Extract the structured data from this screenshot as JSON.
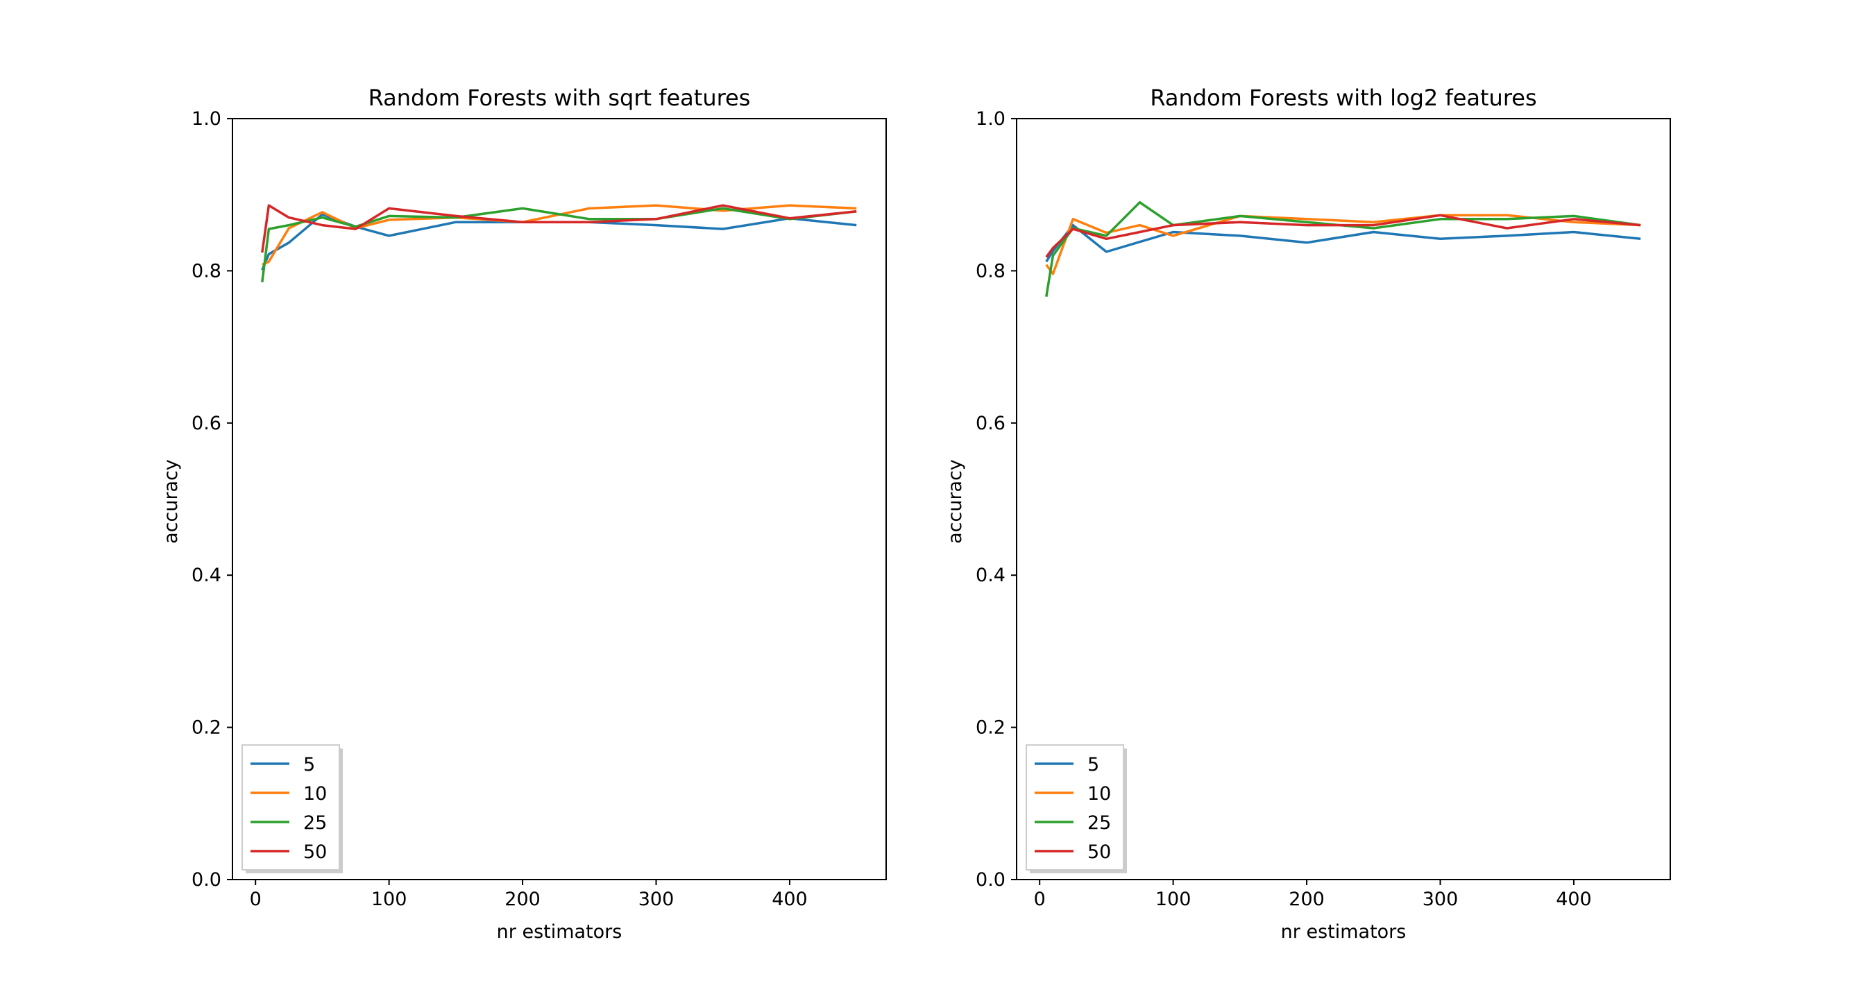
{
  "colors": {
    "series": [
      "#1f77b4",
      "#ff7f0e",
      "#2ca02c",
      "#d62728"
    ],
    "axis": "#000000",
    "background": "#ffffff"
  },
  "chart_data": [
    {
      "type": "line",
      "title": "Random Forests with sqrt features",
      "xlabel": "nr estimators",
      "ylabel": "accuracy",
      "xlim": [
        -17.25,
        472.25
      ],
      "ylim": [
        0.0,
        1.0
      ],
      "xticks": [
        0,
        100,
        200,
        300,
        400
      ],
      "xtick_labels": [
        "0",
        "100",
        "200",
        "300",
        "400"
      ],
      "yticks": [
        0.0,
        0.2,
        0.4,
        0.6,
        0.8,
        1.0
      ],
      "ytick_labels": [
        "0.0",
        "0.2",
        "0.4",
        "0.6",
        "0.8",
        "1.0"
      ],
      "grid": false,
      "legend_position": "lower-left",
      "x": [
        5,
        10,
        25,
        50,
        75,
        100,
        150,
        200,
        250,
        300,
        350,
        400,
        450
      ],
      "series": [
        {
          "name": "5",
          "values": [
            0.801,
            0.822,
            0.837,
            0.874,
            0.858,
            0.846,
            0.864,
            0.864,
            0.864,
            0.86,
            0.855,
            0.869,
            0.86
          ]
        },
        {
          "name": "10",
          "values": [
            0.808,
            0.812,
            0.856,
            0.877,
            0.856,
            0.867,
            0.87,
            0.864,
            0.882,
            0.886,
            0.879,
            0.886,
            0.882
          ]
        },
        {
          "name": "25",
          "values": [
            0.785,
            0.855,
            0.86,
            0.87,
            0.858,
            0.872,
            0.87,
            0.882,
            0.868,
            0.868,
            0.882,
            0.868,
            0.878
          ]
        },
        {
          "name": "50",
          "values": [
            0.824,
            0.886,
            0.87,
            0.86,
            0.855,
            0.882,
            0.872,
            0.864,
            0.864,
            0.868,
            0.886,
            0.869,
            0.878
          ]
        }
      ]
    },
    {
      "type": "line",
      "title": "Random Forests with log2 features",
      "xlabel": "nr estimators",
      "ylabel": "accuracy",
      "xlim": [
        -17.25,
        472.25
      ],
      "ylim": [
        0.0,
        1.0
      ],
      "xticks": [
        0,
        100,
        200,
        300,
        400
      ],
      "xtick_labels": [
        "0",
        "100",
        "200",
        "300",
        "400"
      ],
      "yticks": [
        0.0,
        0.2,
        0.4,
        0.6,
        0.8,
        1.0
      ],
      "ytick_labels": [
        "0.0",
        "0.2",
        "0.4",
        "0.6",
        "0.8",
        "1.0"
      ],
      "grid": false,
      "legend_position": "lower-left",
      "x": [
        5,
        10,
        25,
        50,
        75,
        100,
        150,
        200,
        250,
        300,
        350,
        400,
        450
      ],
      "series": [
        {
          "name": "5",
          "values": [
            0.812,
            0.826,
            0.86,
            0.825,
            0.838,
            0.851,
            0.846,
            0.837,
            0.851,
            0.842,
            0.846,
            0.851,
            0.842
          ]
        },
        {
          "name": "10",
          "values": [
            0.808,
            0.796,
            0.868,
            0.85,
            0.86,
            0.846,
            0.872,
            0.868,
            0.864,
            0.873,
            0.873,
            0.864,
            0.86
          ]
        },
        {
          "name": "25",
          "values": [
            0.766,
            0.82,
            0.856,
            0.846,
            0.89,
            0.86,
            0.872,
            0.864,
            0.856,
            0.868,
            0.868,
            0.872,
            0.86
          ]
        },
        {
          "name": "50",
          "values": [
            0.818,
            0.83,
            0.855,
            0.842,
            0.851,
            0.86,
            0.864,
            0.86,
            0.86,
            0.873,
            0.856,
            0.868,
            0.86
          ]
        }
      ]
    }
  ]
}
